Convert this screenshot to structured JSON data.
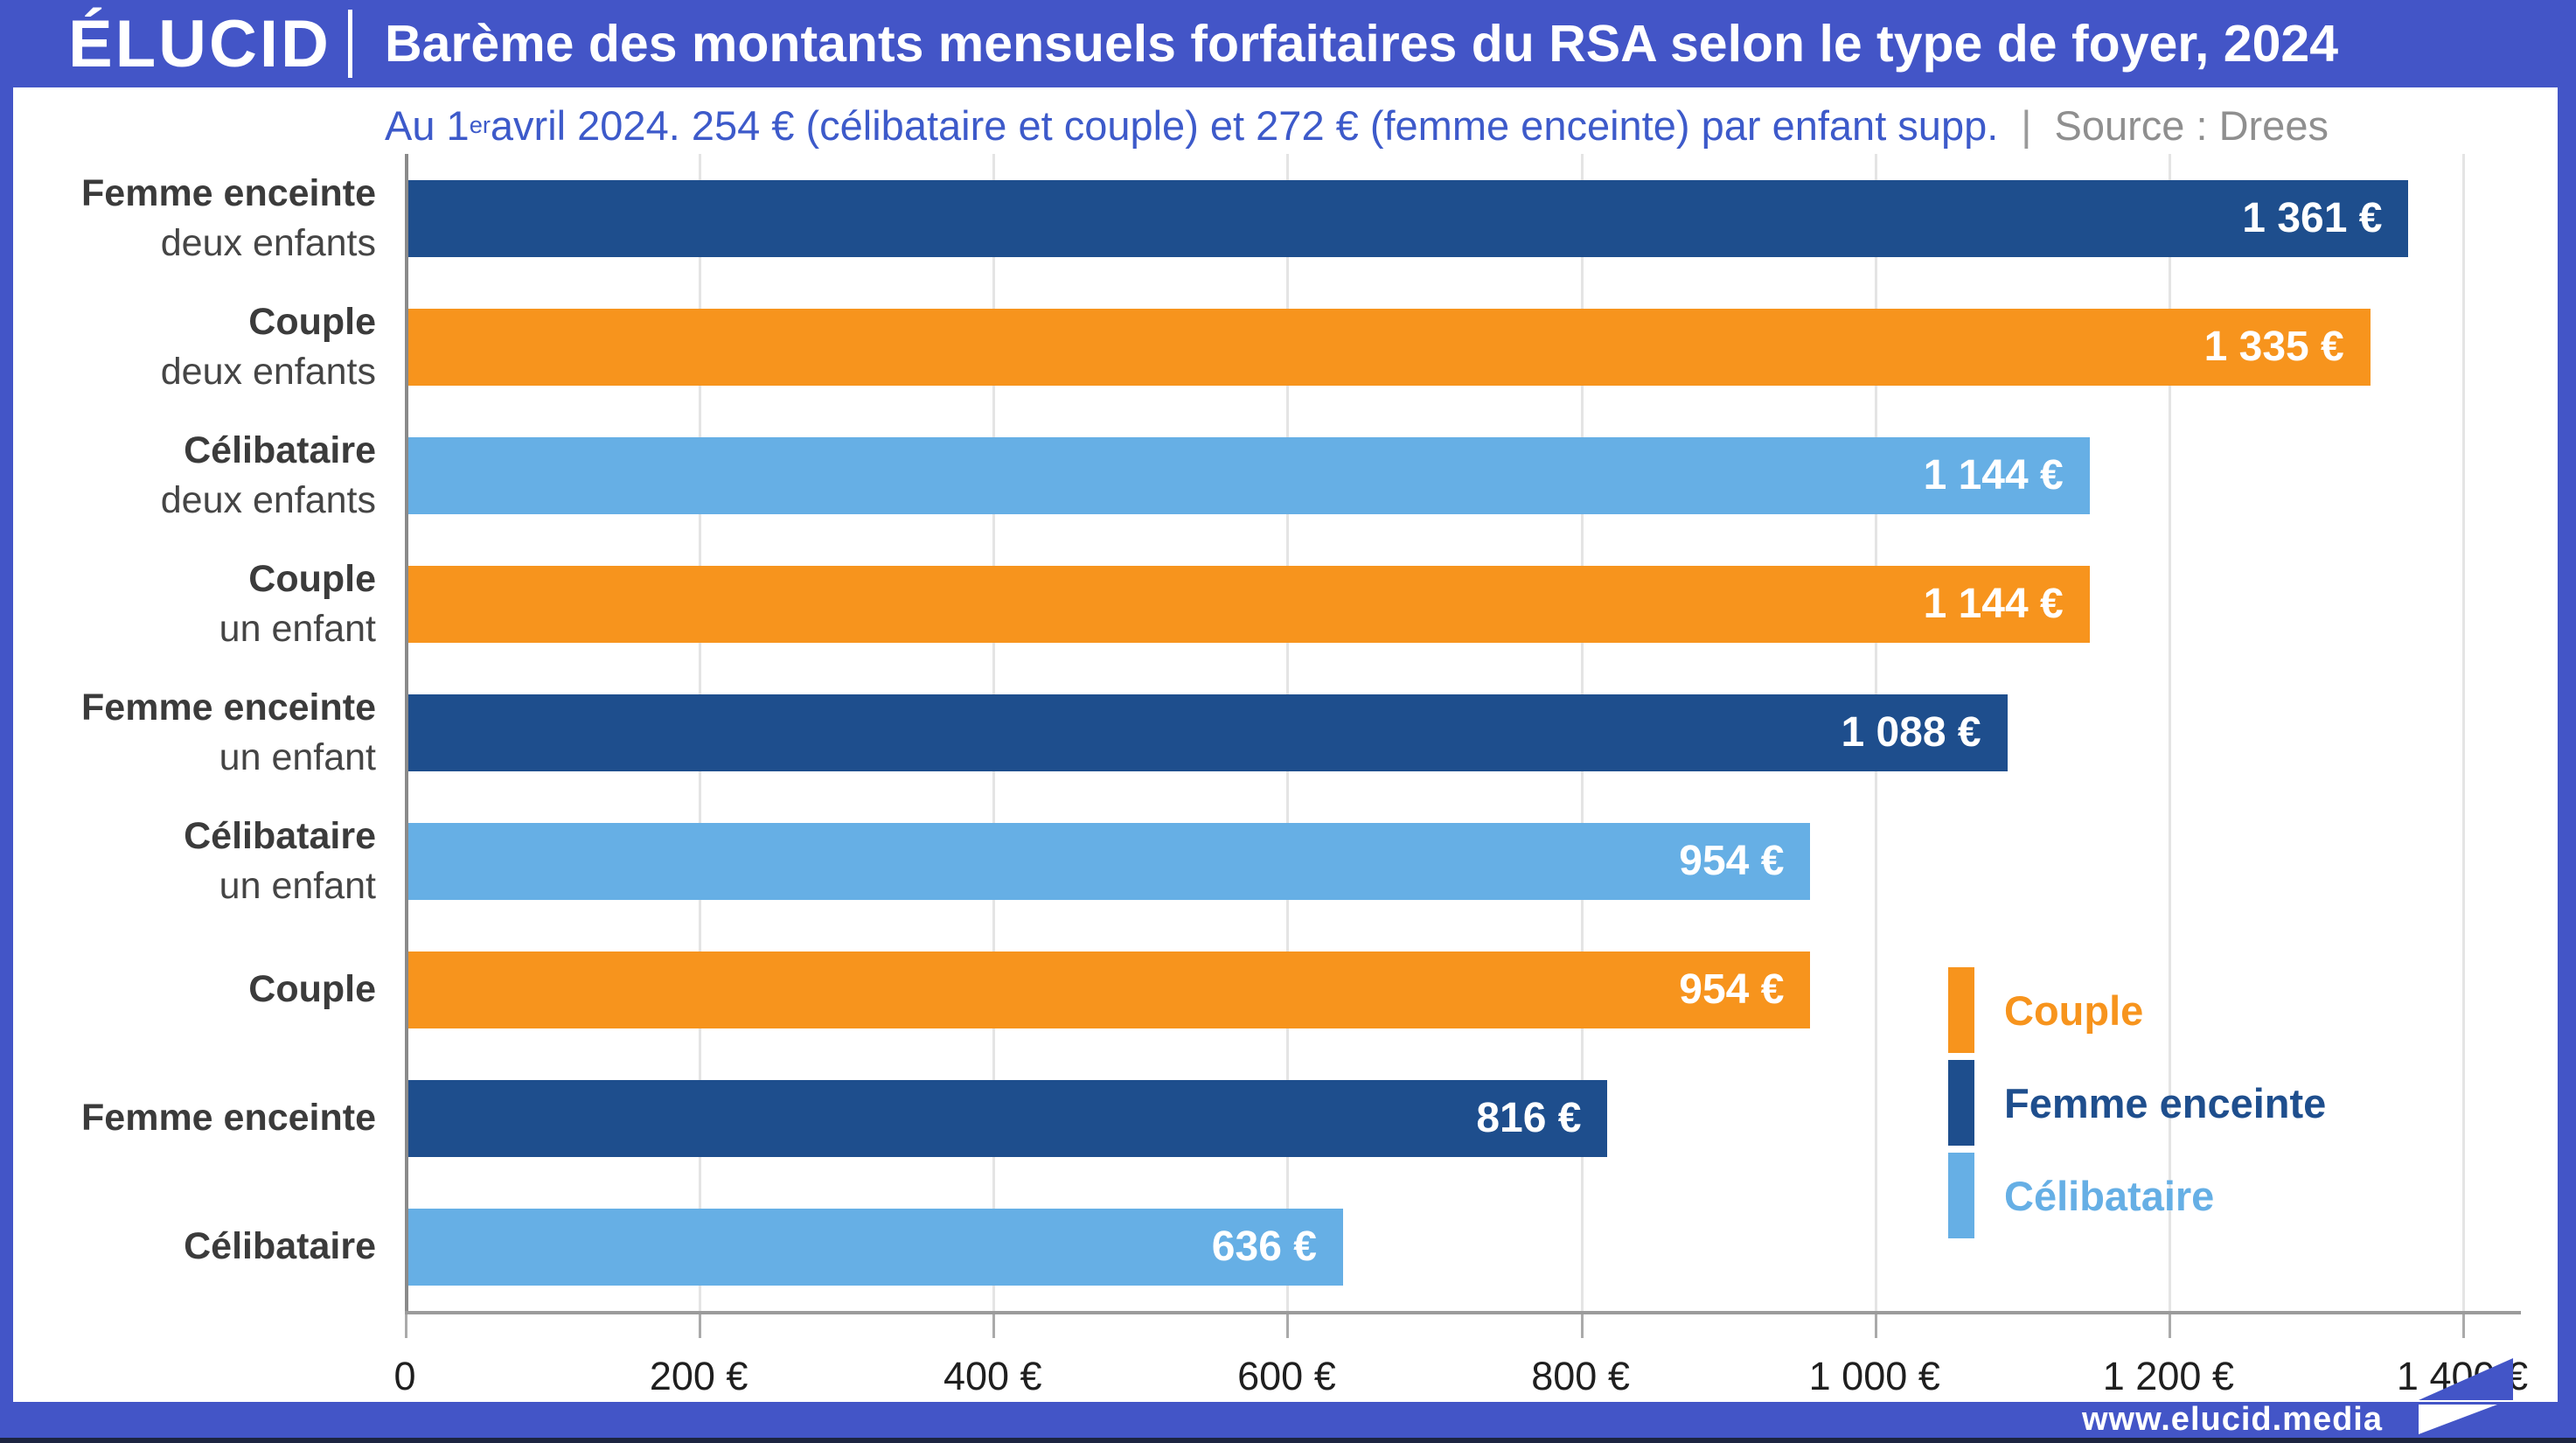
{
  "header": {
    "logo": "ÉLUCID",
    "title": "Barème des montants mensuels forfaitaires du RSA selon le type de foyer, 2024"
  },
  "subtitle": {
    "prefix": "Au 1",
    "superscript": "er",
    "rest": " avril 2024. 254 € (célibataire et couple) et 272 € (femme enceinte) par enfant supp.",
    "separator": "|",
    "source": "Source : Drees"
  },
  "chart_data": {
    "type": "bar",
    "orientation": "horizontal",
    "title": "Barème des montants mensuels forfaitaires du RSA selon le type de foyer, 2024",
    "unit": "€",
    "xlim": [
      0,
      1400
    ],
    "grid": true,
    "x_ticks": [
      {
        "value": 0,
        "label": "0"
      },
      {
        "value": 200,
        "label": "200 €"
      },
      {
        "value": 400,
        "label": "400 €"
      },
      {
        "value": 600,
        "label": "600 €"
      },
      {
        "value": 800,
        "label": "800 €"
      },
      {
        "value": 1000,
        "label": "1 000 €"
      },
      {
        "value": 1200,
        "label": "1 200 €"
      },
      {
        "value": 1400,
        "label": "1 400 €"
      }
    ],
    "categories": [
      {
        "label_line1": "Femme enceinte",
        "label_line2": "deux enfants",
        "series": "femme_enceinte",
        "value": 1361,
        "value_label": "1 361 €"
      },
      {
        "label_line1": "Couple",
        "label_line2": "deux enfants",
        "series": "couple",
        "value": 1335,
        "value_label": "1 335 €"
      },
      {
        "label_line1": "Célibataire",
        "label_line2": "deux enfants",
        "series": "celibataire",
        "value": 1144,
        "value_label": "1 144 €"
      },
      {
        "label_line1": "Couple",
        "label_line2": "un enfant",
        "series": "couple",
        "value": 1144,
        "value_label": "1 144 €"
      },
      {
        "label_line1": "Femme enceinte",
        "label_line2": "un enfant",
        "series": "femme_enceinte",
        "value": 1088,
        "value_label": "1 088 €"
      },
      {
        "label_line1": "Célibataire",
        "label_line2": "un enfant",
        "series": "celibataire",
        "value": 954,
        "value_label": "954 €"
      },
      {
        "label_line1": "Couple",
        "label_line2": "",
        "series": "couple",
        "value": 954,
        "value_label": "954 €"
      },
      {
        "label_line1": "Femme enceinte",
        "label_line2": "",
        "series": "femme_enceinte",
        "value": 816,
        "value_label": "816 €"
      },
      {
        "label_line1": "Célibataire",
        "label_line2": "",
        "series": "celibataire",
        "value": 636,
        "value_label": "636 €"
      }
    ],
    "colors": {
      "couple": "#F7941D",
      "femme_enceinte": "#1E4E8D",
      "celibataire": "#66AFE5"
    },
    "legend": {
      "position": "bottom-right",
      "entries": [
        {
          "label": "Couple",
          "series": "couple",
          "color": "#F7941D"
        },
        {
          "label": "Femme enceinte",
          "series": "femme_enceinte",
          "color": "#1E4E8D"
        },
        {
          "label": "Célibataire",
          "series": "celibataire",
          "color": "#66AFE5"
        }
      ]
    }
  },
  "footer": {
    "website": "www.elucid.media"
  },
  "theme": {
    "frame_blue": "#4355C7",
    "subtitle_blue": "#3D5ACA",
    "source_gray": "#8f8f8f",
    "label_dark": "#3b3b3b",
    "grid_gray": "#e4e4e4"
  }
}
